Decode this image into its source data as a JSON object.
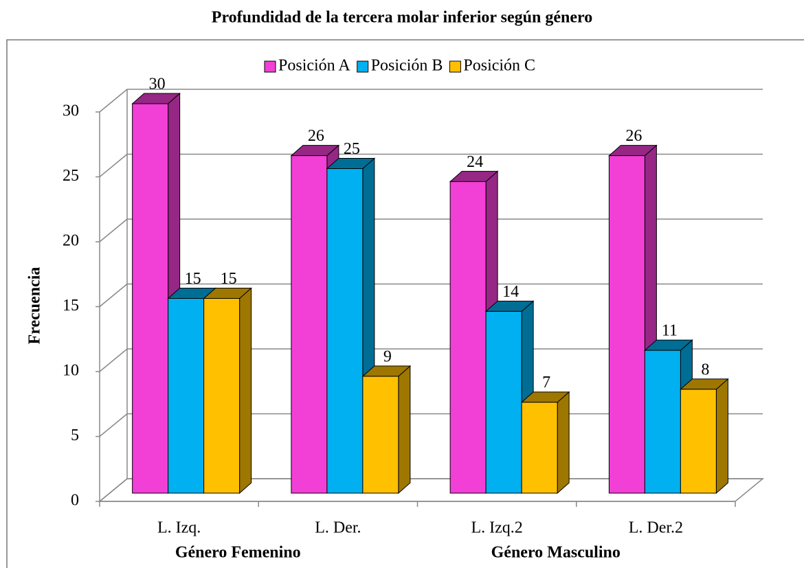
{
  "chart_data": {
    "type": "bar3d",
    "title": "Profundidad de la tercera molar inferior según género",
    "y_label": "Frecuencia",
    "categories": [
      "L. Izq.",
      "L. Der.",
      "L. Izq.2",
      "L. Der.2"
    ],
    "group_labels": [
      "Género Femenino",
      "Género Masculino"
    ],
    "series": [
      {
        "name": "Posición A",
        "color": "#f23fd6",
        "values": [
          30,
          26,
          24,
          26
        ]
      },
      {
        "name": "Posición B",
        "color": "#00b0f0",
        "values": [
          15,
          25,
          14,
          11
        ]
      },
      {
        "name": "Posición C",
        "color": "#ffc000",
        "values": [
          15,
          9,
          7,
          8
        ]
      }
    ],
    "ylim": [
      0,
      30
    ],
    "yticks": [
      0,
      5,
      10,
      15,
      20,
      25,
      30
    ],
    "grid": true,
    "legend": "top"
  }
}
